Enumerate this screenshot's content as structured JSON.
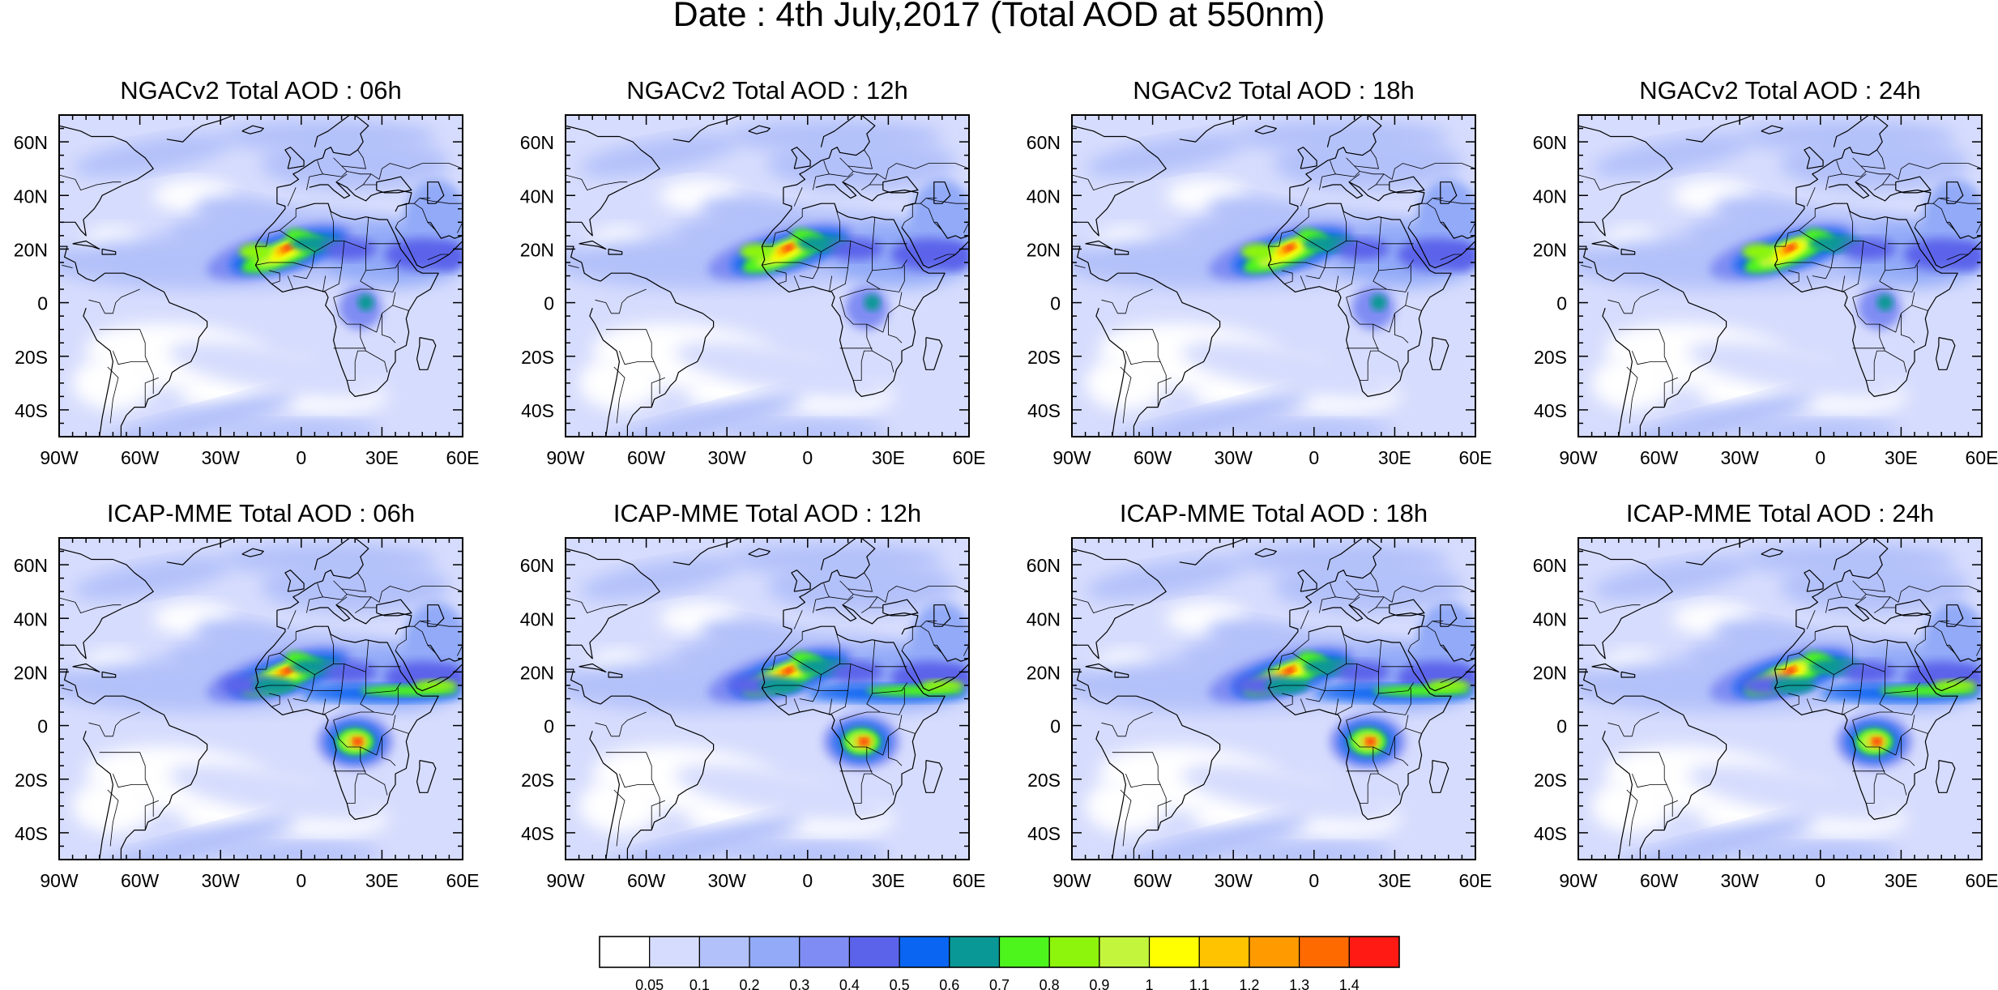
{
  "figure": {
    "main_title": "Date : 4th July,2017 (Total AOD at 550nm)"
  },
  "panels": [
    {
      "title": "NGACv2 Total AOD : 06h",
      "model": "NGACv2",
      "forecast_hour": "06h"
    },
    {
      "title": "NGACv2 Total AOD : 12h",
      "model": "NGACv2",
      "forecast_hour": "12h"
    },
    {
      "title": "NGACv2 Total AOD : 18h",
      "model": "NGACv2",
      "forecast_hour": "18h"
    },
    {
      "title": "NGACv2 Total AOD : 24h",
      "model": "NGACv2",
      "forecast_hour": "24h"
    },
    {
      "title": "ICAP-MME Total AOD : 06h",
      "model": "ICAP-MME",
      "forecast_hour": "06h"
    },
    {
      "title": "ICAP-MME Total AOD : 12h",
      "model": "ICAP-MME",
      "forecast_hour": "12h"
    },
    {
      "title": "ICAP-MME Total AOD : 18h",
      "model": "ICAP-MME",
      "forecast_hour": "18h"
    },
    {
      "title": "ICAP-MME Total AOD : 24h",
      "model": "ICAP-MME",
      "forecast_hour": "24h"
    }
  ],
  "map": {
    "lon_range": [
      -90,
      60
    ],
    "lat_range": [
      -50,
      70
    ],
    "lon_ticks": [
      {
        "value": -90,
        "label": "90W"
      },
      {
        "value": -60,
        "label": "60W"
      },
      {
        "value": -30,
        "label": "30W"
      },
      {
        "value": 0,
        "label": "0"
      },
      {
        "value": 30,
        "label": "30E"
      },
      {
        "value": 60,
        "label": "60E"
      }
    ],
    "lat_ticks": [
      {
        "value": 60,
        "label": "60N"
      },
      {
        "value": 40,
        "label": "40N"
      },
      {
        "value": 20,
        "label": "20N"
      },
      {
        "value": 0,
        "label": "0"
      },
      {
        "value": -20,
        "label": "20S"
      },
      {
        "value": -40,
        "label": "40S"
      }
    ]
  },
  "colorbar": {
    "levels": [
      "0.05",
      "0.1",
      "0.2",
      "0.3",
      "0.4",
      "0.5",
      "0.6",
      "0.7",
      "0.8",
      "0.9",
      "1",
      "1.1",
      "1.2",
      "1.3",
      "1.4"
    ],
    "colors": [
      "#ffffff",
      "#d6dcfd",
      "#b3c1fa",
      "#92aaf8",
      "#7f8cf3",
      "#5b63ea",
      "#0a66f2",
      "#0a9896",
      "#4df51d",
      "#8df50b",
      "#c2f53c",
      "#ffff00",
      "#ffc300",
      "#ff9a00",
      "#ff6a00",
      "#ff1a14"
    ]
  }
}
